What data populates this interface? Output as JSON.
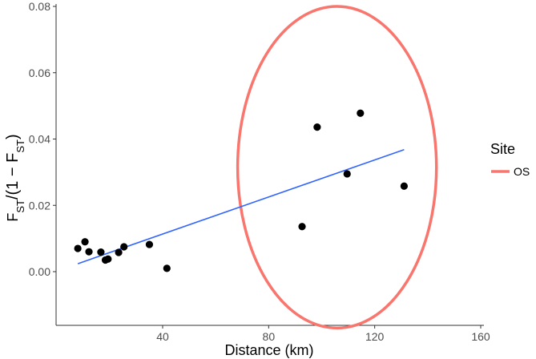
{
  "chart_data": {
    "type": "scatter",
    "title": "",
    "xlabel": "Distance (km)",
    "ylabel": "F_ST/(1 − F_ST)",
    "ylabel_parts": [
      "F",
      "ST",
      "/(1 − F",
      "ST",
      ")"
    ],
    "xlim": [
      0,
      160
    ],
    "ylim": [
      -0.017,
      0.081
    ],
    "xticks": [
      40,
      80,
      120,
      160
    ],
    "yticks": [
      0.0,
      0.02,
      0.04,
      0.06,
      0.08
    ],
    "xtick_labels": [
      "40",
      "80",
      "120",
      "160"
    ],
    "ytick_labels": [
      "0.00",
      "0.02",
      "0.04",
      "0.06",
      "0.08"
    ],
    "grid": false,
    "points": [
      {
        "x": 8.0,
        "y": 0.007
      },
      {
        "x": 10.7,
        "y": 0.009
      },
      {
        "x": 12.2,
        "y": 0.006
      },
      {
        "x": 16.7,
        "y": 0.0059
      },
      {
        "x": 18.4,
        "y": 0.0035
      },
      {
        "x": 19.4,
        "y": 0.0038
      },
      {
        "x": 23.4,
        "y": 0.0058
      },
      {
        "x": 25.4,
        "y": 0.0075
      },
      {
        "x": 35.0,
        "y": 0.0082
      },
      {
        "x": 41.6,
        "y": 0.001
      },
      {
        "x": 92.6,
        "y": 0.0136
      },
      {
        "x": 98.3,
        "y": 0.0436
      },
      {
        "x": 109.6,
        "y": 0.0295
      },
      {
        "x": 114.6,
        "y": 0.0478
      },
      {
        "x": 131.1,
        "y": 0.0258
      }
    ],
    "trend_line": {
      "x": [
        8.0,
        131.1
      ],
      "y": [
        0.0024,
        0.0368
      ],
      "color": "#3366ff"
    },
    "ellipse": {
      "cx": 105.8,
      "cy": 0.0315,
      "rx": 37.5,
      "ry": 0.0485,
      "color": "#f8766d"
    },
    "point_color": "#000000",
    "legend": {
      "title": "Site",
      "entries": [
        {
          "label": "OS",
          "color": "#f8766d"
        }
      ],
      "position": "right"
    }
  }
}
